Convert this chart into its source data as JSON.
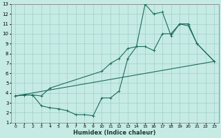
{
  "xlabel": "Humidex (Indice chaleur)",
  "bg_color": "#c6ebe5",
  "line_color": "#1a6b5a",
  "grid_color": "#a0cdc8",
  "xlim": [
    -0.5,
    23.5
  ],
  "ylim": [
    1,
    13
  ],
  "xticks": [
    0,
    1,
    2,
    3,
    4,
    5,
    6,
    7,
    8,
    9,
    10,
    11,
    12,
    13,
    14,
    15,
    16,
    17,
    18,
    19,
    20,
    21,
    22,
    23
  ],
  "yticks": [
    1,
    2,
    3,
    4,
    5,
    6,
    7,
    8,
    9,
    10,
    11,
    12,
    13
  ],
  "line1_x": [
    0,
    1,
    2,
    3,
    4,
    10,
    11,
    12,
    13,
    14,
    15,
    16,
    17,
    18,
    19,
    20,
    21,
    23
  ],
  "line1_y": [
    3.7,
    3.8,
    3.8,
    3.7,
    4.5,
    6.2,
    7.0,
    7.5,
    8.5,
    8.7,
    8.7,
    8.3,
    10.0,
    10.0,
    11.0,
    11.0,
    9.0,
    7.2
  ],
  "line2_x": [
    0,
    1,
    2,
    3,
    4,
    5,
    6,
    7,
    8,
    9,
    10,
    11,
    12,
    13,
    14,
    15,
    16,
    17,
    18,
    19,
    20,
    21,
    23
  ],
  "line2_y": [
    3.7,
    3.8,
    3.8,
    2.7,
    2.5,
    2.4,
    2.2,
    1.8,
    1.8,
    1.7,
    3.5,
    3.5,
    4.2,
    7.5,
    8.7,
    13.0,
    12.0,
    12.2,
    9.8,
    11.0,
    10.8,
    9.0,
    7.2
  ],
  "line3_x": [
    0,
    23
  ],
  "line3_y": [
    3.7,
    7.2
  ]
}
